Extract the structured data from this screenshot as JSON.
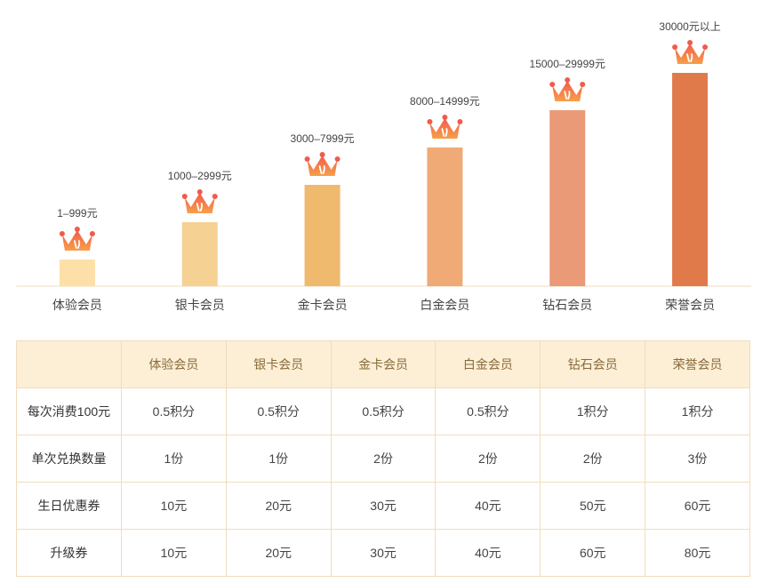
{
  "chart_data": {
    "type": "bar",
    "categories": [
      "体验会员",
      "银卡会员",
      "金卡会员",
      "白金会员",
      "钻石会员",
      "荣誉会员"
    ],
    "ranges": [
      "1–999元",
      "1000–2999元",
      "3000–7999元",
      "8000–14999元",
      "15000–29999元",
      "30000元以上"
    ],
    "values": [
      1,
      2,
      3,
      4,
      5,
      6
    ],
    "colors": [
      "#fde0a8",
      "#f5d194",
      "#efb96e",
      "#f0aa76",
      "#ea9a77",
      "#e07a4b"
    ],
    "icon": "crown-icon",
    "ylim": [
      0,
      6
    ]
  },
  "table": {
    "headers": [
      "",
      "体验会员",
      "银卡会员",
      "金卡会员",
      "白金会员",
      "钻石会员",
      "荣誉会员"
    ],
    "rows": [
      {
        "label": "每次消费100元",
        "cells": [
          "0.5积分",
          "0.5积分",
          "0.5积分",
          "0.5积分",
          "1积分",
          "1积分"
        ]
      },
      {
        "label": "单次兑换数量",
        "cells": [
          "1份",
          "1份",
          "2份",
          "2份",
          "2份",
          "3份"
        ]
      },
      {
        "label": "生日优惠券",
        "cells": [
          "10元",
          "20元",
          "30元",
          "40元",
          "50元",
          "60元"
        ]
      },
      {
        "label": "升级券",
        "cells": [
          "10元",
          "20元",
          "30元",
          "40元",
          "60元",
          "80元"
        ]
      }
    ],
    "colors": {
      "header_bg": "#fcefd6",
      "border": "#f1dcbd",
      "header_text": "#8a6a3a"
    }
  }
}
